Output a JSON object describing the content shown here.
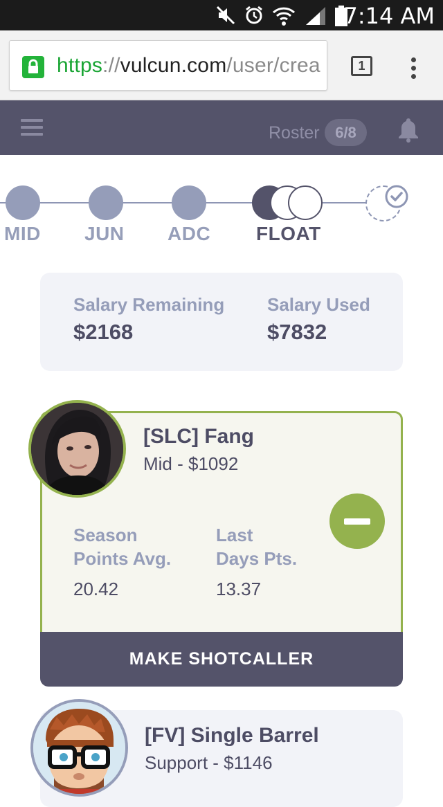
{
  "status_bar": {
    "time": "7:14 AM"
  },
  "browser": {
    "url_scheme": "https",
    "url_sep": "://",
    "url_domain": "vulcun.com",
    "url_path": "/user/crea",
    "tab_count": "1"
  },
  "app_bar": {
    "roster_label": "Roster",
    "roster_count": "6/8"
  },
  "steps": [
    {
      "label": "MID"
    },
    {
      "label": "JUN"
    },
    {
      "label": "ADC"
    },
    {
      "label": "FLOAT",
      "active": true
    }
  ],
  "salary": {
    "remaining_label": "Salary Remaining",
    "remaining_value": "$2168",
    "used_label": "Salary Used",
    "used_value": "$7832"
  },
  "players": [
    {
      "name": "[SLC] Fang",
      "role_price": "Mid - $1092",
      "stat1_label_line1": "Season",
      "stat1_label_line2": "Points Avg.",
      "stat1_value": "20.42",
      "stat2_label_line1": "Last",
      "stat2_label_line2": "Days Pts.",
      "stat2_value": "13.37",
      "action_label": "MAKE SHOTCALLER"
    },
    {
      "name": "[FV] Single Barrel",
      "role_price": "Support - $1146"
    }
  ],
  "colors": {
    "app_bar": "#54536a",
    "accent_green": "#94b24e",
    "muted_blue": "#959db9",
    "text_dark": "#4d4c64"
  }
}
